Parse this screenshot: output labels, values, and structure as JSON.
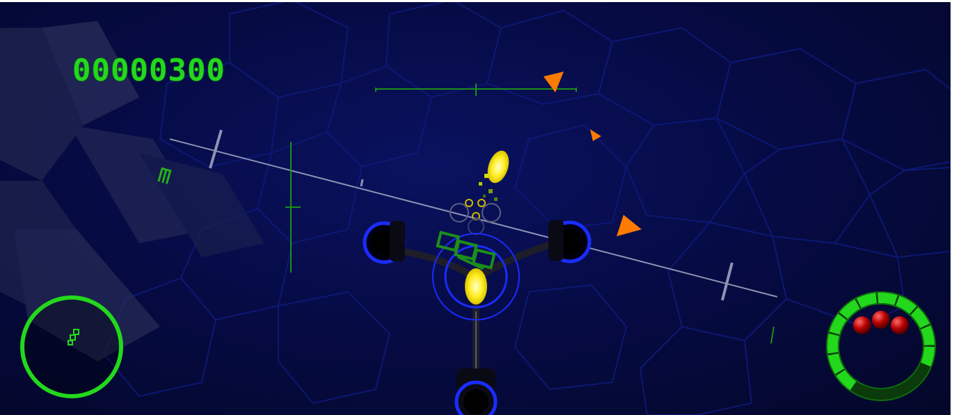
{
  "hud": {
    "score": "00000300",
    "lives_remaining": 3,
    "shield_level": 0.75
  },
  "colors": {
    "hud_green": "#23d81c",
    "enemy_orange": "#ff7a00",
    "ship_blue": "#1a2cff",
    "plasma_yellow": "#ffee22",
    "life_red": "#b80000"
  },
  "icons": {
    "enemy_marker": "orange-triangle-icon",
    "life_orb": "red-sphere-icon",
    "radar_blip": "green-square-icon"
  }
}
